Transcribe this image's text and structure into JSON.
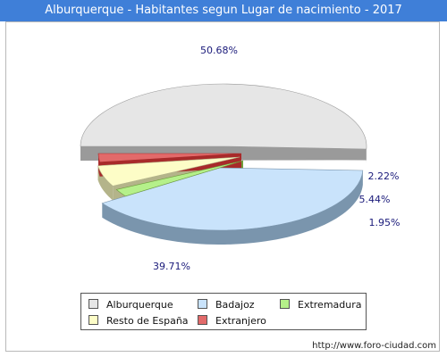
{
  "title": "Alburquerque - Habitantes segun Lugar de nacimiento - 2017",
  "footer": "http://www.foro-ciudad.com",
  "chart_data": {
    "type": "pie",
    "categories": [
      "Alburquerque",
      "Badajoz",
      "Extremadura",
      "Resto de España",
      "Extranjero"
    ],
    "values": [
      50.68,
      39.71,
      1.95,
      5.44,
      2.22
    ],
    "labels": [
      "50.68%",
      "39.71%",
      "1.95%",
      "5.44%",
      "2.22%"
    ],
    "colors": [
      "#e6e6e6",
      "#c9e3fb",
      "#b5f08a",
      "#fdfdc7",
      "#e26a6a"
    ],
    "side_colors": [
      "#9a9a9a",
      "#7a95ad",
      "#6f9e3c",
      "#b4b48a",
      "#a82a2a"
    ],
    "legend": [
      "Alburquerque",
      "Badajoz",
      "Extremadura",
      "Resto de España",
      "Extranjero"
    ],
    "legend_position": "bottom"
  }
}
